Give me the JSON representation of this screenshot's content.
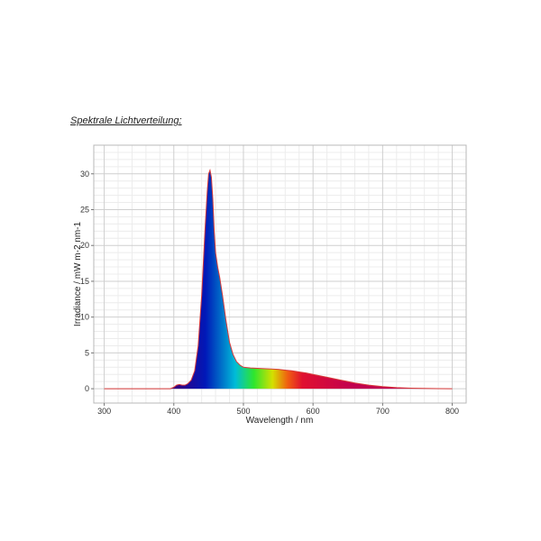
{
  "heading": "Spektrale Lichtverteilung:",
  "chart_data": {
    "type": "area",
    "xlabel": "Wavelength / nm",
    "ylabel": "Irradiance / mW m-2 nm-1",
    "xlim": [
      285,
      820
    ],
    "ylim": [
      -2,
      34
    ],
    "xticks": [
      300,
      400,
      500,
      600,
      700,
      800
    ],
    "yticks": [
      0,
      5,
      10,
      15,
      20,
      25,
      30
    ],
    "grid": true,
    "series": [
      {
        "x": [
          300,
          395,
          400,
          404,
          408,
          412,
          416,
          420,
          425,
          430,
          435,
          440,
          445,
          448,
          450,
          452,
          454,
          456,
          458,
          460,
          463,
          466,
          470,
          475,
          480,
          485,
          490,
          495,
          500,
          510,
          520,
          530,
          540,
          550,
          560,
          570,
          580,
          590,
          600,
          620,
          640,
          660,
          680,
          700,
          720,
          740,
          760,
          780,
          800
        ],
        "values": [
          0,
          0,
          0.2,
          0.5,
          0.6,
          0.5,
          0.5,
          0.7,
          1.2,
          2.5,
          6.0,
          13.0,
          22.5,
          27.5,
          30.0,
          30.5,
          29.5,
          26.5,
          22.0,
          19.0,
          17.0,
          15.5,
          13.0,
          9.5,
          6.5,
          4.8,
          3.8,
          3.3,
          3.0,
          2.9,
          2.85,
          2.8,
          2.75,
          2.7,
          2.6,
          2.5,
          2.35,
          2.2,
          2.0,
          1.6,
          1.2,
          0.8,
          0.5,
          0.3,
          0.15,
          0.08,
          0.04,
          0.02,
          0
        ]
      }
    ]
  },
  "colors": {
    "outline": "#d83a3a",
    "grid_major": "#cfcfcf",
    "grid_minor": "#ececec",
    "spectrum_violet": "#35007f",
    "spectrum_blue": "#0018b8",
    "spectrum_cyan": "#00bcd8",
    "spectrum_green": "#2ee62e",
    "spectrum_yellow": "#d4e000",
    "spectrum_orange": "#f06010",
    "spectrum_red": "#e01030",
    "spectrum_crimson": "#c00050"
  }
}
